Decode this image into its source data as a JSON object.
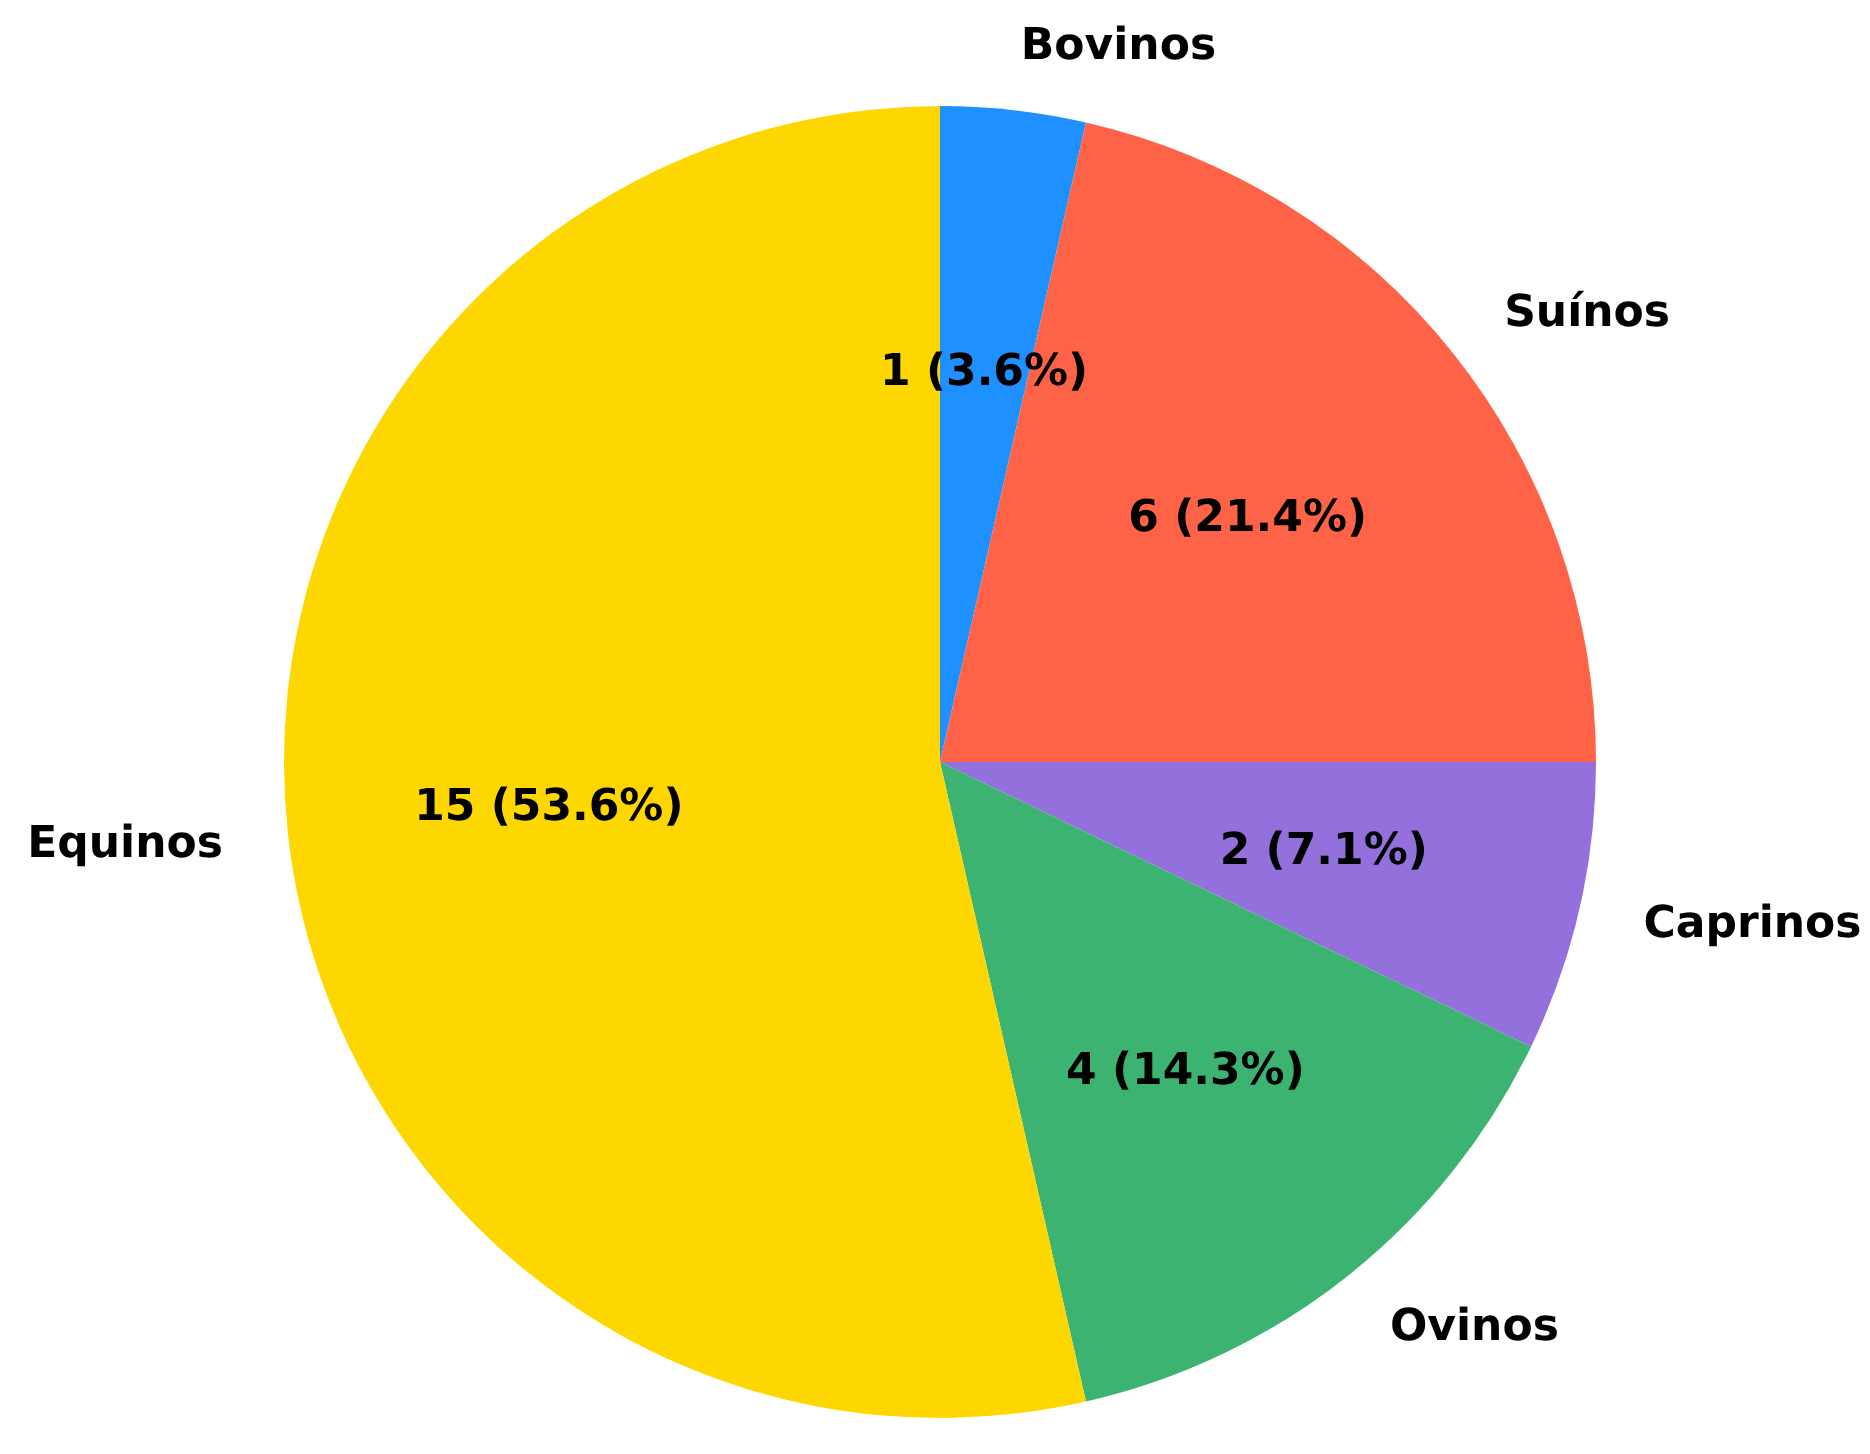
{
  "chart_data": {
    "type": "pie",
    "categories": [
      "Bovinos",
      "Suínos",
      "Caprinos",
      "Ovinos",
      "Equinos"
    ],
    "values": [
      1,
      6,
      2,
      4,
      15
    ],
    "colors": [
      "#1e90ff",
      "#ff6347",
      "#9370db",
      "#3cb371",
      "#ffd700"
    ],
    "value_labels": [
      "1 (3.6%)",
      "6 (21.4%)",
      "2 (7.1%)",
      "4 (14.3%)",
      "15 (53.6%)"
    ]
  }
}
